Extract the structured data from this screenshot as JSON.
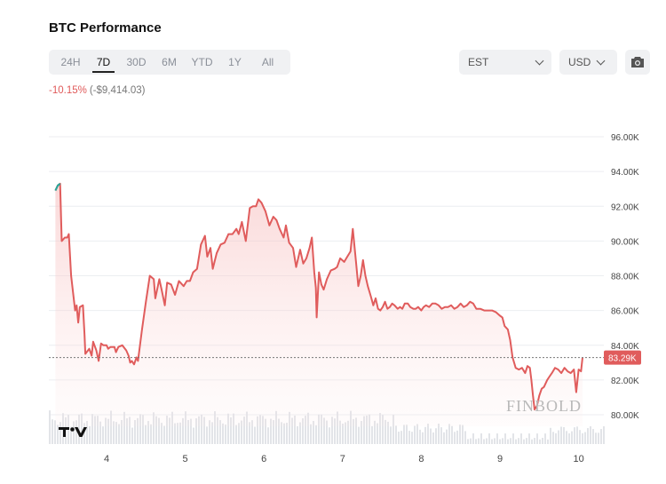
{
  "header": {
    "title": "BTC Performance"
  },
  "range_tabs": [
    "24H",
    "7D",
    "30D",
    "6M",
    "YTD",
    "1Y",
    "All"
  ],
  "active_range": "7D",
  "timezone_select": {
    "value": "EST",
    "icon": "chevron-down-icon"
  },
  "currency_select": {
    "value": "USD",
    "icon": "chevron-down-icon"
  },
  "screenshot_button": {
    "icon": "camera-icon"
  },
  "change": {
    "percent": "-10.15%",
    "absolute": "(-$9,414.03)"
  },
  "watermark": "FINBOLD",
  "logo_text": "TV",
  "colors": {
    "line": "#e05c5c",
    "line_start": "#26a69a",
    "negative_text": "#e05a5a",
    "current_label_bg": "#e05c5c"
  },
  "chart_data": {
    "type": "area",
    "title": "BTC Performance",
    "y_tick_labels": [
      "96.00K",
      "94.00K",
      "92.00K",
      "90.00K",
      "88.00K",
      "86.00K",
      "84.00K",
      "82.00K",
      "80.00K"
    ],
    "x_tick_labels": [
      "4",
      "5",
      "6",
      "7",
      "8",
      "9",
      "10"
    ],
    "ylim": [
      79500,
      97000
    ],
    "current_price_label": "83.29K",
    "current_price": 83290,
    "x_domain": [
      3.35,
      10.4
    ],
    "grid": "horizontal",
    "series": [
      {
        "values": [
          [
            3.35,
            92900
          ],
          [
            3.38,
            93200
          ],
          [
            3.41,
            93300
          ],
          [
            3.43,
            90000
          ],
          [
            3.47,
            90200
          ],
          [
            3.5,
            90200
          ],
          [
            3.52,
            90400
          ],
          [
            3.55,
            88000
          ],
          [
            3.58,
            86800
          ],
          [
            3.6,
            86000
          ],
          [
            3.62,
            86300
          ],
          [
            3.64,
            85300
          ],
          [
            3.66,
            86200
          ],
          [
            3.7,
            86300
          ],
          [
            3.72,
            84600
          ],
          [
            3.73,
            83500
          ],
          [
            3.78,
            83800
          ],
          [
            3.81,
            83400
          ],
          [
            3.83,
            84200
          ],
          [
            3.87,
            83700
          ],
          [
            3.9,
            83100
          ],
          [
            3.93,
            84100
          ],
          [
            3.96,
            84000
          ],
          [
            4.0,
            84000
          ],
          [
            4.02,
            83800
          ],
          [
            4.05,
            83900
          ],
          [
            4.1,
            83900
          ],
          [
            4.12,
            83600
          ],
          [
            4.15,
            83900
          ],
          [
            4.2,
            84000
          ],
          [
            4.25,
            83700
          ],
          [
            4.28,
            83400
          ],
          [
            4.3,
            83000
          ],
          [
            4.32,
            83100
          ],
          [
            4.35,
            82900
          ],
          [
            4.38,
            83300
          ],
          [
            4.4,
            83100
          ],
          [
            4.45,
            84900
          ],
          [
            4.5,
            86500
          ],
          [
            4.55,
            88000
          ],
          [
            4.6,
            87800
          ],
          [
            4.62,
            86700
          ],
          [
            4.67,
            87800
          ],
          [
            4.7,
            87200
          ],
          [
            4.74,
            86300
          ],
          [
            4.77,
            87600
          ],
          [
            4.82,
            87500
          ],
          [
            4.87,
            86900
          ],
          [
            4.92,
            87700
          ],
          [
            4.98,
            87400
          ],
          [
            5.02,
            87700
          ],
          [
            5.06,
            87700
          ],
          [
            5.1,
            88200
          ],
          [
            5.15,
            88400
          ],
          [
            5.2,
            89800
          ],
          [
            5.25,
            90300
          ],
          [
            5.28,
            89100
          ],
          [
            5.32,
            89600
          ],
          [
            5.35,
            88400
          ],
          [
            5.4,
            89300
          ],
          [
            5.45,
            89800
          ],
          [
            5.5,
            89900
          ],
          [
            5.55,
            90400
          ],
          [
            5.6,
            90400
          ],
          [
            5.65,
            90700
          ],
          [
            5.68,
            90400
          ],
          [
            5.72,
            91100
          ],
          [
            5.77,
            90000
          ],
          [
            5.82,
            91900
          ],
          [
            5.86,
            92000
          ],
          [
            5.9,
            92000
          ],
          [
            5.93,
            92400
          ],
          [
            5.97,
            92200
          ],
          [
            6.02,
            91700
          ],
          [
            6.07,
            90900
          ],
          [
            6.12,
            91400
          ],
          [
            6.16,
            91200
          ],
          [
            6.2,
            90700
          ],
          [
            6.25,
            90200
          ],
          [
            6.28,
            90900
          ],
          [
            6.32,
            89900
          ],
          [
            6.37,
            89600
          ],
          [
            6.41,
            88500
          ],
          [
            6.46,
            89500
          ],
          [
            6.5,
            88700
          ],
          [
            6.54,
            89000
          ],
          [
            6.58,
            89600
          ],
          [
            6.61,
            90200
          ],
          [
            6.64,
            88200
          ],
          [
            6.66,
            87300
          ],
          [
            6.67,
            85600
          ],
          [
            6.7,
            88200
          ],
          [
            6.73,
            87500
          ],
          [
            6.76,
            87200
          ],
          [
            6.8,
            87800
          ],
          [
            6.85,
            88300
          ],
          [
            6.9,
            88400
          ],
          [
            6.93,
            88500
          ],
          [
            6.97,
            89000
          ],
          [
            7.02,
            88800
          ],
          [
            7.06,
            89100
          ],
          [
            7.1,
            89400
          ],
          [
            7.13,
            90700
          ],
          [
            7.17,
            88800
          ],
          [
            7.2,
            87400
          ],
          [
            7.23,
            88000
          ],
          [
            7.26,
            88900
          ],
          [
            7.29,
            88000
          ],
          [
            7.32,
            87400
          ],
          [
            7.36,
            86800
          ],
          [
            7.39,
            86300
          ],
          [
            7.42,
            86700
          ],
          [
            7.45,
            86100
          ],
          [
            7.48,
            86000
          ],
          [
            7.51,
            86200
          ],
          [
            7.54,
            86500
          ],
          [
            7.57,
            86100
          ],
          [
            7.6,
            86200
          ],
          [
            7.63,
            86400
          ],
          [
            7.66,
            86300
          ],
          [
            7.7,
            86100
          ],
          [
            7.73,
            86200
          ],
          [
            7.76,
            86100
          ],
          [
            7.79,
            86400
          ],
          [
            7.83,
            86400
          ],
          [
            7.86,
            86200
          ],
          [
            7.9,
            86100
          ],
          [
            7.93,
            86100
          ],
          [
            7.96,
            86200
          ],
          [
            8.0,
            86000
          ],
          [
            8.03,
            86200
          ],
          [
            8.06,
            86300
          ],
          [
            8.1,
            86200
          ],
          [
            8.14,
            86400
          ],
          [
            8.18,
            86400
          ],
          [
            8.22,
            86300
          ],
          [
            8.26,
            86100
          ],
          [
            8.3,
            86200
          ],
          [
            8.34,
            86200
          ],
          [
            8.38,
            86300
          ],
          [
            8.42,
            86100
          ],
          [
            8.46,
            86200
          ],
          [
            8.5,
            86400
          ],
          [
            8.54,
            86200
          ],
          [
            8.58,
            86300
          ],
          [
            8.62,
            86500
          ],
          [
            8.66,
            86400
          ],
          [
            8.7,
            86100
          ],
          [
            8.75,
            86100
          ],
          [
            8.8,
            86000
          ],
          [
            8.85,
            86000
          ],
          [
            8.9,
            86000
          ],
          [
            8.95,
            85900
          ],
          [
            9.0,
            85700
          ],
          [
            9.03,
            85600
          ],
          [
            9.06,
            85100
          ],
          [
            9.1,
            84900
          ],
          [
            9.13,
            84300
          ],
          [
            9.16,
            83300
          ],
          [
            9.2,
            82700
          ],
          [
            9.24,
            82600
          ],
          [
            9.28,
            82700
          ],
          [
            9.32,
            82400
          ],
          [
            9.35,
            82800
          ],
          [
            9.38,
            82700
          ],
          [
            9.4,
            82000
          ],
          [
            9.42,
            81100
          ],
          [
            9.44,
            80300
          ],
          [
            9.47,
            80500
          ],
          [
            9.5,
            81100
          ],
          [
            9.53,
            81500
          ],
          [
            9.56,
            81600
          ],
          [
            9.6,
            82000
          ],
          [
            9.63,
            82200
          ],
          [
            9.66,
            82400
          ],
          [
            9.7,
            82700
          ],
          [
            9.74,
            82600
          ],
          [
            9.78,
            82400
          ],
          [
            9.82,
            82700
          ],
          [
            9.86,
            82500
          ],
          [
            9.9,
            82400
          ],
          [
            9.94,
            82600
          ],
          [
            9.97,
            81300
          ],
          [
            10.0,
            82600
          ],
          [
            10.03,
            82500
          ],
          [
            10.05,
            83290
          ]
        ]
      }
    ],
    "volume_bars": "relative volume histogram along bottom edge"
  }
}
